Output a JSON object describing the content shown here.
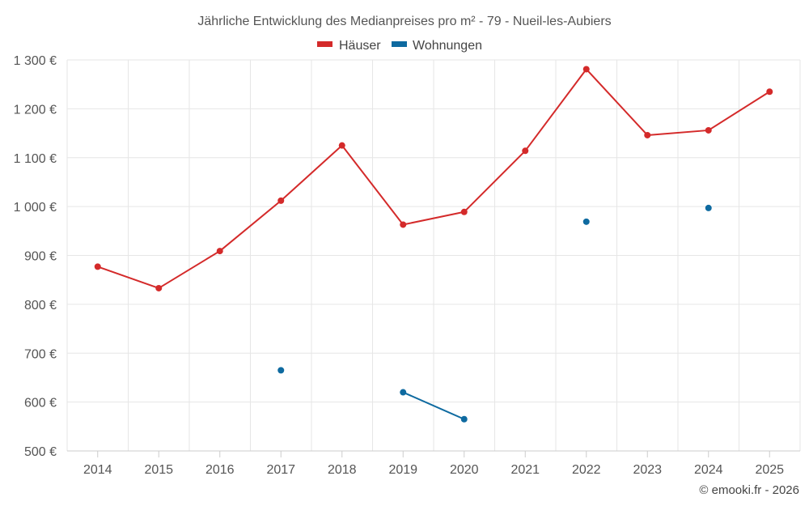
{
  "chart_data": {
    "type": "line",
    "title": "Jährliche Entwicklung des Medianpreises pro m² - 79 - Nueil-les-Aubiers",
    "xlabel": "",
    "ylabel": "",
    "x": [
      "2014",
      "2015",
      "2016",
      "2017",
      "2018",
      "2019",
      "2020",
      "2021",
      "2022",
      "2023",
      "2024",
      "2025"
    ],
    "ylim": [
      500,
      1300
    ],
    "yticks": [
      500,
      600,
      700,
      800,
      900,
      1000,
      1100,
      1200,
      1300
    ],
    "ytick_labels": [
      "500 €",
      "600 €",
      "700 €",
      "800 €",
      "900 €",
      "1 000 €",
      "1 100 €",
      "1 200 €",
      "1 300 €"
    ],
    "grid": true,
    "legend_position": "top-center",
    "series": [
      {
        "name": "Häuser",
        "color": "#d42a2a",
        "values": [
          877,
          833,
          909,
          1012,
          1125,
          963,
          989,
          1114,
          1281,
          1146,
          1156,
          1235
        ]
      },
      {
        "name": "Wohnungen",
        "color": "#0e6aa0",
        "values": [
          null,
          null,
          null,
          665,
          null,
          620,
          565,
          null,
          969,
          null,
          997,
          null
        ]
      }
    ],
    "credit": "© emooki.fr - 2026"
  }
}
